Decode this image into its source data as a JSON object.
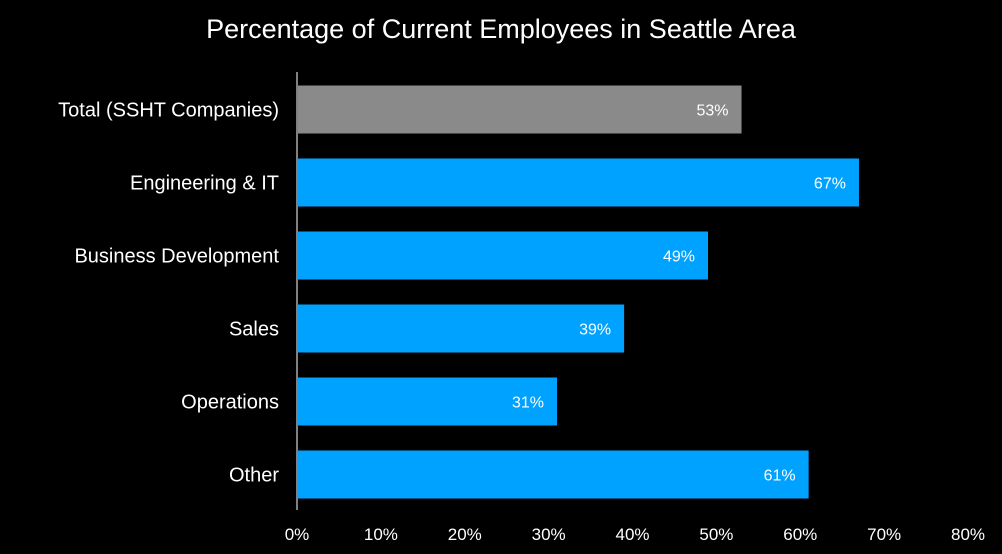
{
  "chart_data": {
    "type": "bar",
    "orientation": "horizontal",
    "title": "Percentage of Current Employees in Seattle Area",
    "xlabel": "",
    "ylabel": "",
    "categories": [
      "Total (SSHT Companies)",
      "Engineering & IT",
      "Business Development",
      "Sales",
      "Operations",
      "Other"
    ],
    "values": [
      53,
      67,
      49,
      39,
      31,
      61
    ],
    "data_labels": [
      "53%",
      "67%",
      "49%",
      "39%",
      "31%",
      "61%"
    ],
    "highlight_index": 0,
    "xlim": [
      0,
      80
    ],
    "x_ticks": [
      0,
      10,
      20,
      30,
      40,
      50,
      60,
      70,
      80
    ],
    "x_tick_labels": [
      "0%",
      "10%",
      "20%",
      "30%",
      "40%",
      "50%",
      "60%",
      "70%",
      "80%"
    ],
    "grid": false,
    "legend": "none",
    "colors": {
      "background": "#000000",
      "bar": "#00a2ff",
      "highlight_bar": "#8a8a8a",
      "text": "#ffffff",
      "axis": "#ffffff"
    }
  }
}
